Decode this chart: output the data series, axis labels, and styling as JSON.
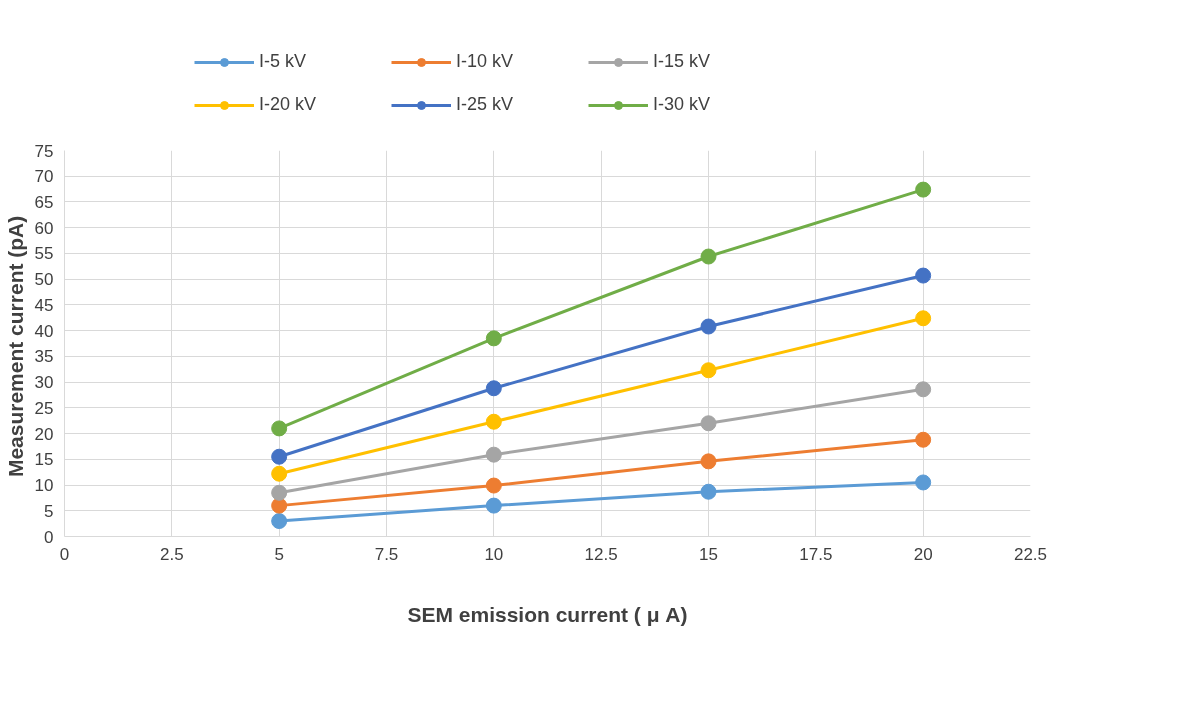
{
  "chart_data": {
    "type": "line",
    "xlabel": "SEM emission current ( μ A)",
    "ylabel": "Measurement current  (pA)",
    "x": [
      5,
      10,
      15,
      20
    ],
    "series": [
      {
        "name": "I-5 kV",
        "color": "#5b9bd5",
        "values": [
          3.0,
          6.0,
          8.7,
          10.5
        ]
      },
      {
        "name": "I-10 kV",
        "color": "#ed7d31",
        "values": [
          6.0,
          9.9,
          14.6,
          18.8
        ]
      },
      {
        "name": "I-15 kV",
        "color": "#a5a5a5",
        "values": [
          8.5,
          15.9,
          22.0,
          28.6
        ]
      },
      {
        "name": "I-20 kV",
        "color": "#ffc000",
        "values": [
          12.2,
          22.3,
          32.3,
          42.4
        ]
      },
      {
        "name": "I-25 kV",
        "color": "#4472c4",
        "values": [
          15.5,
          28.8,
          40.8,
          50.7
        ]
      },
      {
        "name": "I-30 kV",
        "color": "#70ad47",
        "values": [
          21.0,
          38.5,
          54.4,
          67.4
        ]
      }
    ],
    "xlim": [
      0,
      22.5
    ],
    "xticks": [
      0,
      2.5,
      5,
      7.5,
      10,
      12.5,
      15,
      17.5,
      20,
      22.5
    ],
    "ylim": [
      0,
      75
    ],
    "yticks": [
      0,
      5,
      10,
      15,
      20,
      25,
      30,
      35,
      40,
      45,
      50,
      55,
      60,
      65,
      70,
      75
    ],
    "grid": true,
    "legend": "top",
    "marker": "circle",
    "line_style": "solid"
  }
}
